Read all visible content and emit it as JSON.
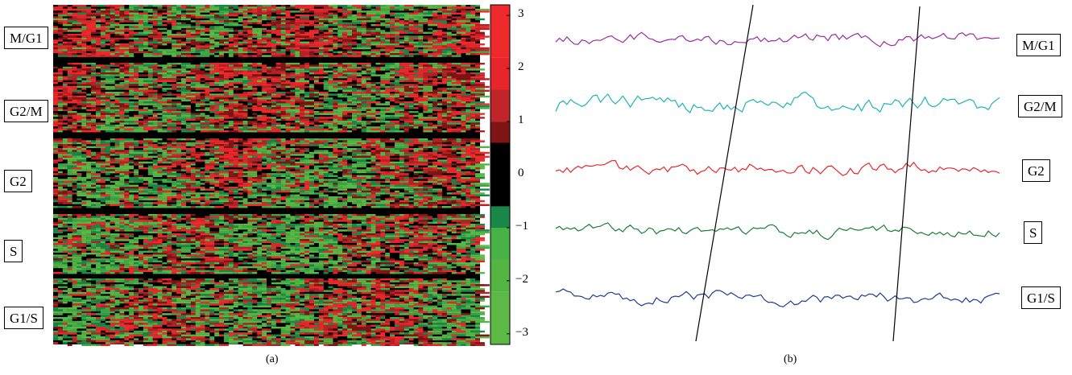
{
  "colors": {
    "heat_red": "#e8262a",
    "heat_green": "#5cb946",
    "background": "#ffffff",
    "separator": "#000000"
  },
  "chart_data": [
    {
      "type": "heatmap",
      "panel_label": "(a)",
      "row_groups": [
        "M/G1",
        "G2/M",
        "G2",
        "S",
        "G1/S"
      ],
      "colorbar": {
        "range": [
          -3.2,
          3.2
        ],
        "ticks": [
          -3,
          -2,
          -1,
          0,
          1,
          2,
          3
        ],
        "tick_labels": [
          "−3",
          "−2",
          "−1",
          "0",
          "1",
          "2",
          "3"
        ],
        "levels": [
          {
            "from": -3.2,
            "to": -2.2,
            "color": "#5cb946"
          },
          {
            "from": -2.2,
            "to": -1.6,
            "color": "#55b543"
          },
          {
            "from": -1.6,
            "to": -1.0,
            "color": "#47b246"
          },
          {
            "from": -1.0,
            "to": -0.6,
            "color": "#188748"
          },
          {
            "from": -0.6,
            "to": 0.6,
            "color": "#000000"
          },
          {
            "from": 0.6,
            "to": 1.0,
            "color": "#7f1514"
          },
          {
            "from": 1.0,
            "to": 1.6,
            "color": "#c02629"
          },
          {
            "from": 1.6,
            "to": 2.2,
            "color": "#e6262b"
          },
          {
            "from": 2.2,
            "to": 3.2,
            "color": "#ef2a2c"
          }
        ]
      }
    },
    {
      "type": "line",
      "panel_label": "(b)",
      "series": [
        {
          "name": "M/G1",
          "color": "#9b2d9f"
        },
        {
          "name": "G2/M",
          "color": "#1fb3b6"
        },
        {
          "name": "G2",
          "color": "#e8262a"
        },
        {
          "name": "S",
          "color": "#1a7d3a"
        },
        {
          "name": "G1/S",
          "color": "#1f3d93"
        }
      ]
    }
  ]
}
